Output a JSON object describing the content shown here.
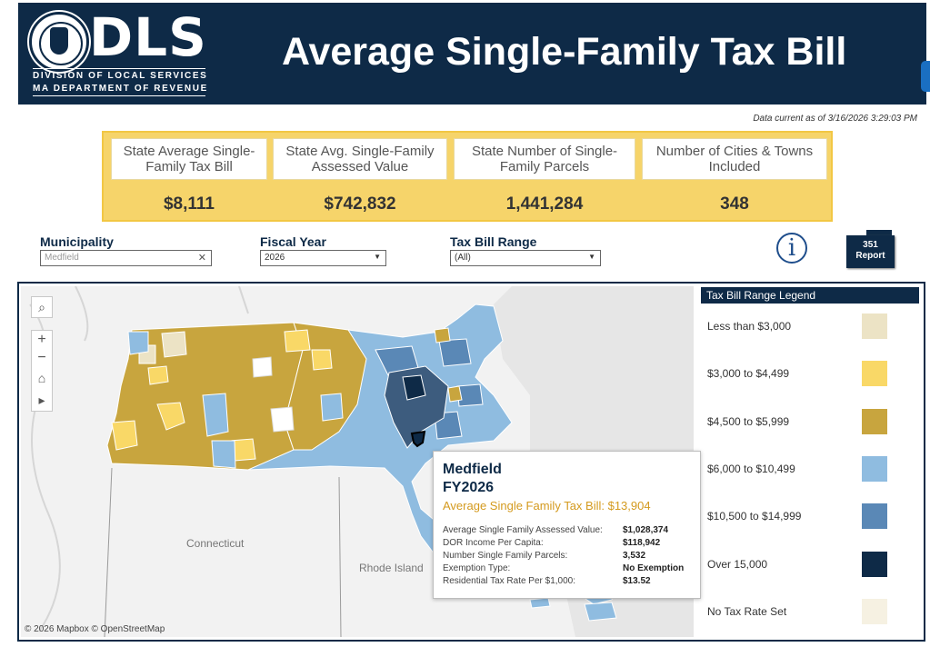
{
  "header": {
    "logo_text": "DLS",
    "logo_subtitle_1": "DIVISION OF LOCAL SERVICES",
    "logo_subtitle_2": "MA DEPARTMENT OF REVENUE",
    "title": "Average Single-Family Tax Bill"
  },
  "data_current": "Data current as of 3/16/2026 3:29:03 PM",
  "kpis": [
    {
      "label": "State Average Single-Family Tax Bill",
      "value": "$8,111"
    },
    {
      "label": "State Avg. Single-Family Assessed Value",
      "value": "$742,832"
    },
    {
      "label": "State Number of Single-Family Parcels",
      "value": "1,441,284"
    },
    {
      "label": "Number of Cities & Towns Included",
      "value": "348"
    }
  ],
  "filters": {
    "municipality": {
      "label": "Municipality",
      "value": "Medfield"
    },
    "fiscal_year": {
      "label": "Fiscal Year",
      "value": "2026"
    },
    "tax_bill_range": {
      "label": "Tax Bill Range",
      "value": "(All)"
    }
  },
  "report_button": {
    "line1": "351",
    "line2": "Report"
  },
  "info_icon_glyph": "i",
  "map": {
    "attribution": "© 2026 Mapbox © OpenStreetMap",
    "labels": {
      "connecticut": "Connecticut",
      "rhode_island": "Rhode Island"
    },
    "controls": {
      "search": "⌕",
      "zoom_in": "+",
      "zoom_out": "−",
      "home": "⌂",
      "play": "▸"
    }
  },
  "tooltip": {
    "title": "Medfield",
    "fiscal_year": "FY2026",
    "avg_tax_bill": "Average Single Family Tax Bill: $13,904",
    "rows": [
      {
        "label": "Average Single Family Assessed Value:",
        "value": "$1,028,374"
      },
      {
        "label": "DOR Income Per Capita:",
        "value": "$118,942"
      },
      {
        "label": "Number Single Family Parcels:",
        "value": "3,532"
      },
      {
        "label": "Exemption Type:",
        "value": "No Exemption"
      },
      {
        "label": "Residential Tax Rate Per $1,000:",
        "value": "$13.52"
      }
    ]
  },
  "legend": {
    "title": "Tax Bill Range Legend",
    "items": [
      {
        "label": "Less than $3,000",
        "color": "#ece3c5"
      },
      {
        "label": "$3,000 to $4,499",
        "color": "#f9d867"
      },
      {
        "label": "$4,500 to $5,999",
        "color": "#c8a53e"
      },
      {
        "label": "$6,000 to $10,499",
        "color": "#8fbce0"
      },
      {
        "label": "$10,500 to $14,999",
        "color": "#5a88b6"
      },
      {
        "label": "Over 15,000",
        "color": "#0e2a47"
      },
      {
        "label": "No Tax Rate Set",
        "color": "#f6f1e2"
      }
    ]
  },
  "colors": {
    "navy": "#0e2a47",
    "kpi_yellow": "#f6d46a",
    "tooltip_accent": "#d49a1e"
  }
}
